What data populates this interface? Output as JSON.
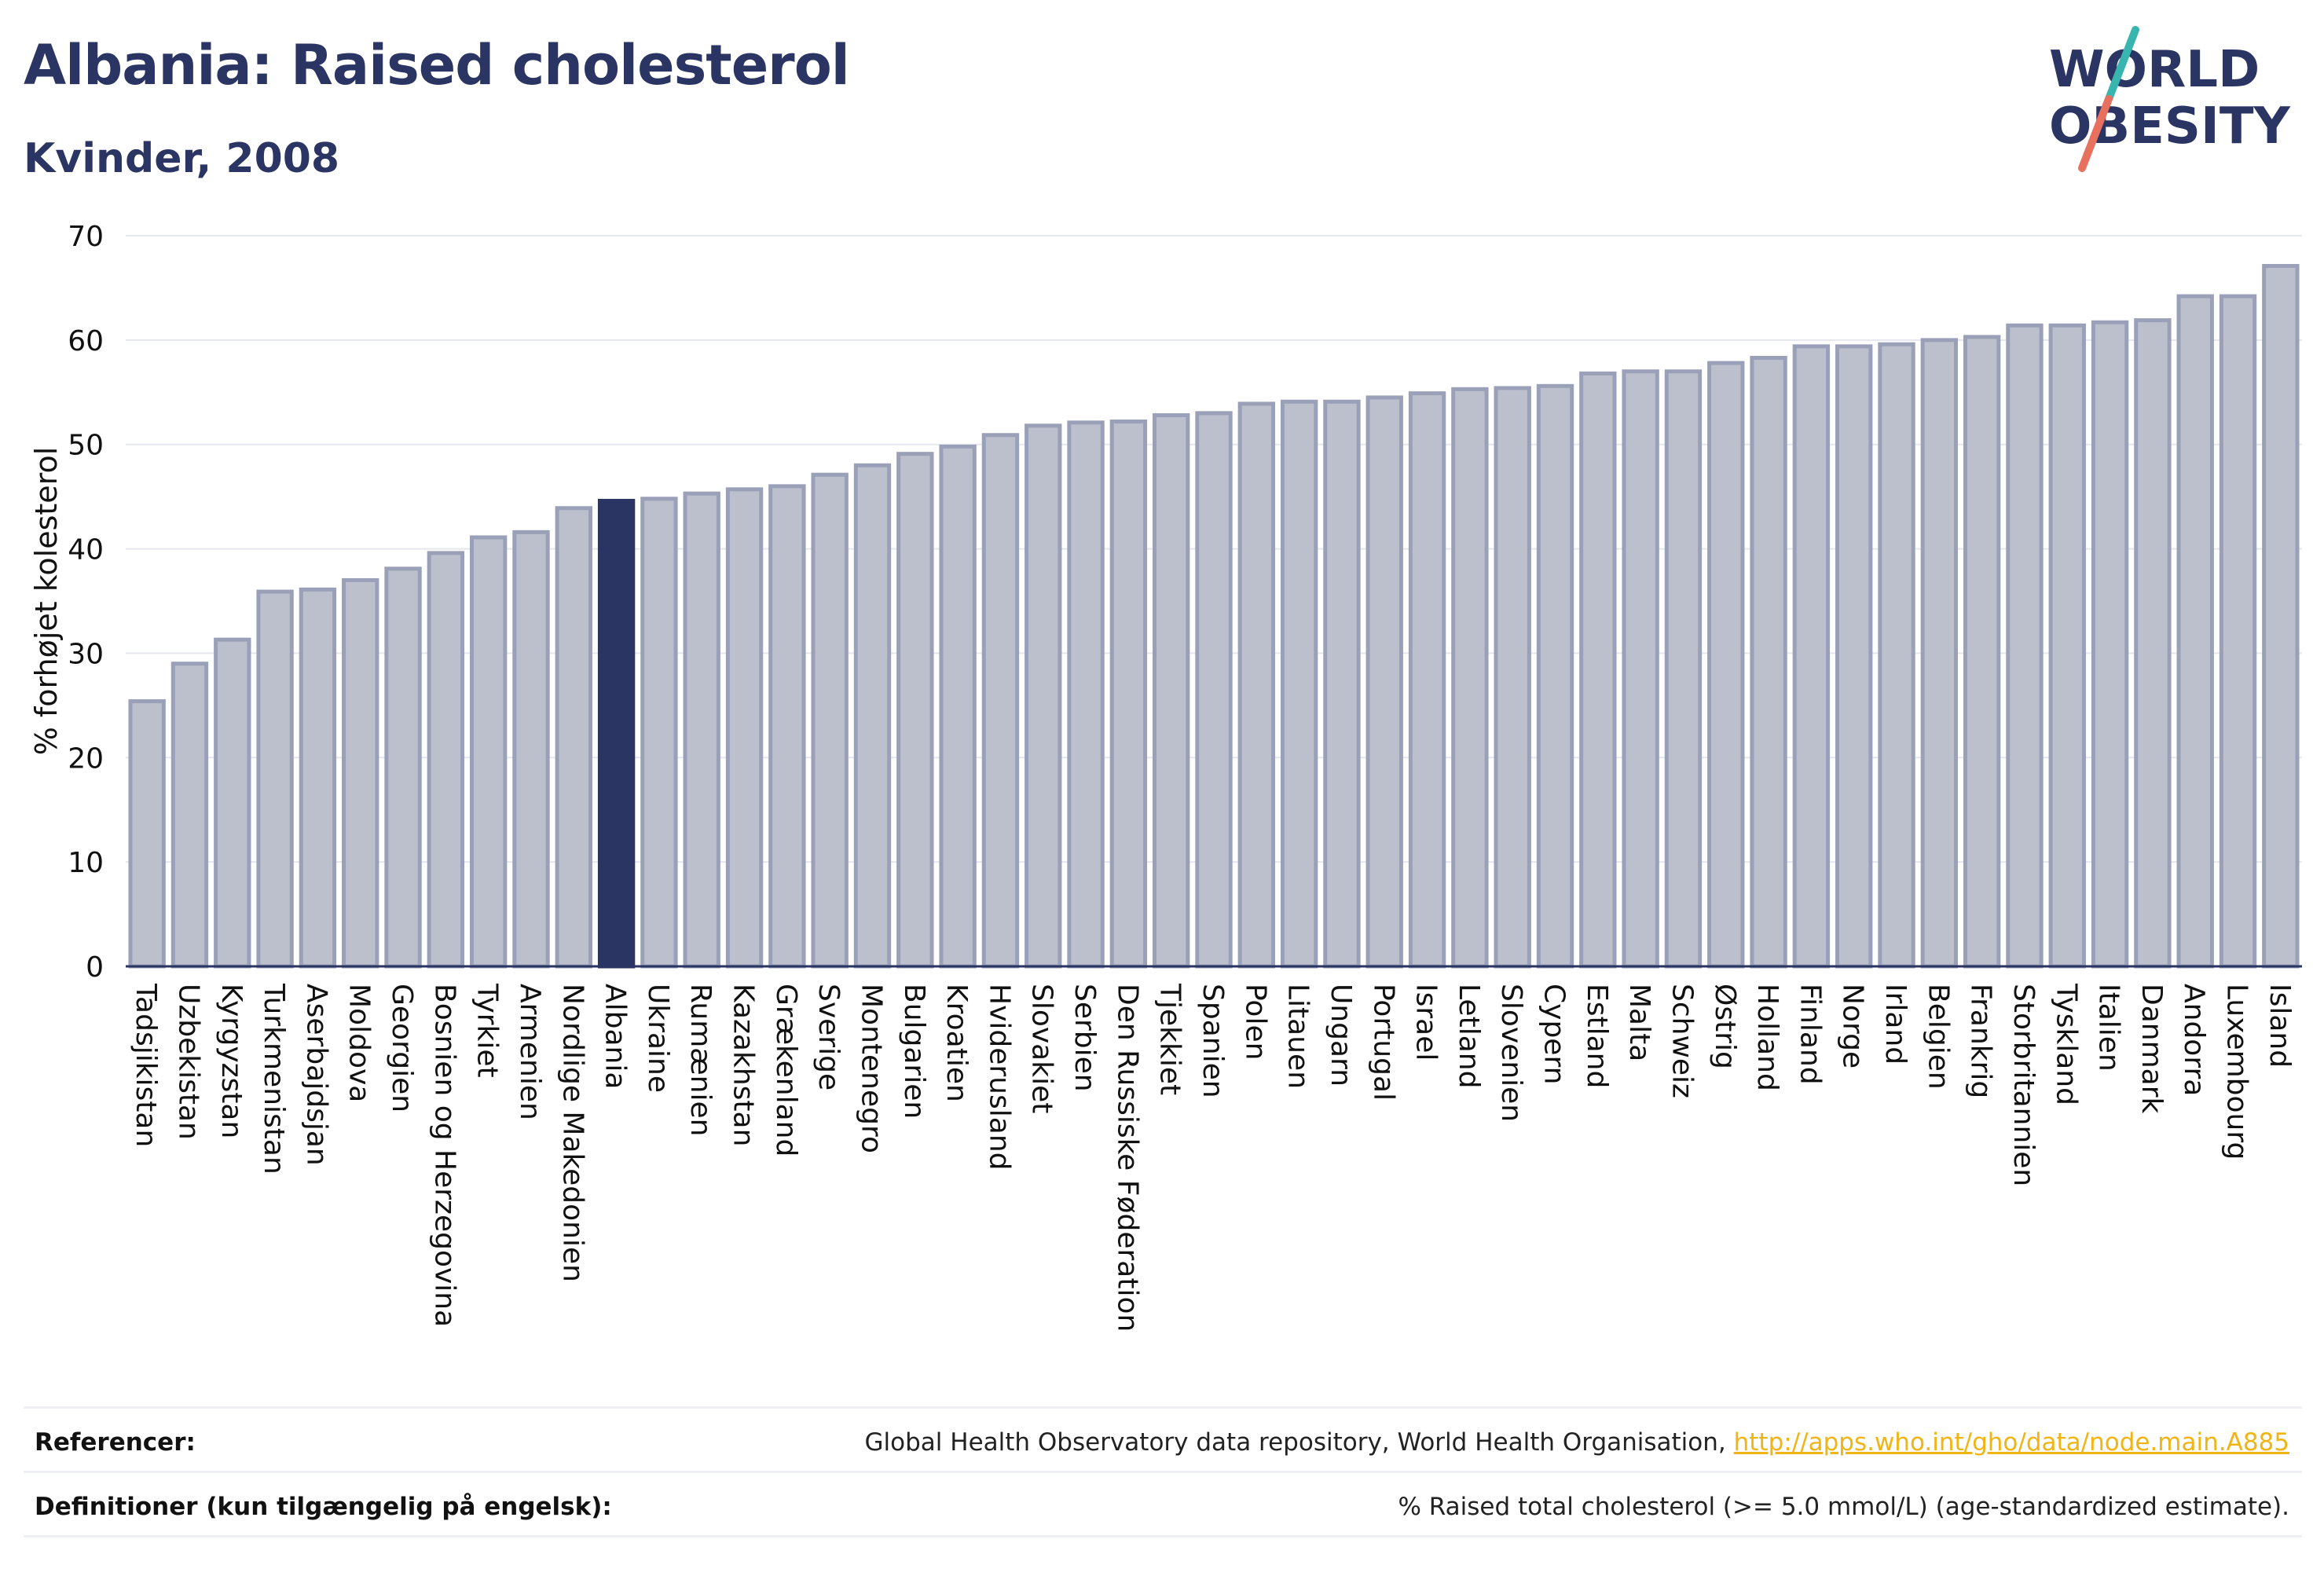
{
  "header": {
    "title": "Albania: Raised cholesterol",
    "subtitle": "Kvinder, 2008"
  },
  "logo": {
    "line1": "WORLD",
    "line2": "OBESITY",
    "colors": {
      "text": "#2b3563",
      "slash_top": "#39b5b0",
      "slash_bottom": "#e8705f"
    }
  },
  "chart_data": {
    "type": "bar",
    "ylabel": "% forhøjet kolesterol",
    "xlabel": "",
    "ylim": [
      0,
      70
    ],
    "yticks": [
      0,
      10,
      20,
      30,
      40,
      50,
      60,
      70
    ],
    "grid": true,
    "highlight": "Albania",
    "colors": {
      "bar": "#bcc0cd",
      "bar_edge": "#9aa0b8",
      "highlight": "#2b3563",
      "grid": "#e5e7ee",
      "axis": "#2b3563"
    },
    "categories": [
      "Tadsjikistan",
      "Uzbekistan",
      "Kyrgyzstan",
      "Turkmenistan",
      "Aserbajdsjan",
      "Moldova",
      "Georgien",
      "Bosnien og Herzegovina",
      "Tyrkiet",
      "Armenien",
      "Nordlige Makedonien",
      "Albania",
      "Ukraine",
      "Rumænien",
      "Kazakhstan",
      "Grækenland",
      "Sverige",
      "Montenegro",
      "Bulgarien",
      "Kroatien",
      "Hviderusland",
      "Slovakiet",
      "Serbien",
      "Den Russiske Føderation",
      "Tjekkiet",
      "Spanien",
      "Polen",
      "Litauen",
      "Ungarn",
      "Portugal",
      "Israel",
      "Letland",
      "Slovenien",
      "Cypern",
      "Estland",
      "Malta",
      "Schweiz",
      "Østrig",
      "Holland",
      "Finland",
      "Norge",
      "Irland",
      "Belgien",
      "Frankrig",
      "Storbritannien",
      "Tyskland",
      "Italien",
      "Danmark",
      "Andorra",
      "Luxembourg",
      "Island"
    ],
    "values": [
      25.4,
      29.0,
      31.3,
      35.9,
      36.1,
      37.0,
      38.1,
      39.6,
      41.1,
      41.6,
      43.9,
      44.6,
      44.8,
      45.3,
      45.7,
      46.0,
      47.1,
      48.0,
      49.1,
      49.8,
      50.9,
      51.8,
      52.1,
      52.2,
      52.8,
      53.0,
      53.9,
      54.1,
      54.1,
      54.5,
      54.9,
      55.3,
      55.4,
      55.6,
      56.8,
      57.0,
      57.0,
      57.8,
      58.3,
      59.4,
      59.4,
      59.6,
      60.0,
      60.3,
      61.4,
      61.4,
      61.7,
      61.9,
      64.2,
      64.2,
      67.1
    ]
  },
  "footer": {
    "references_label": "Referencer:",
    "references_text": "Global Health Observatory data repository, World Health Organisation, ",
    "references_link": "http://apps.who.int/gho/data/node.main.A885",
    "definitions_label": "Definitioner (kun tilgængelig på engelsk):",
    "definitions_text": "% Raised total cholesterol (>= 5.0 mmol/L) (age-standardized estimate)."
  }
}
